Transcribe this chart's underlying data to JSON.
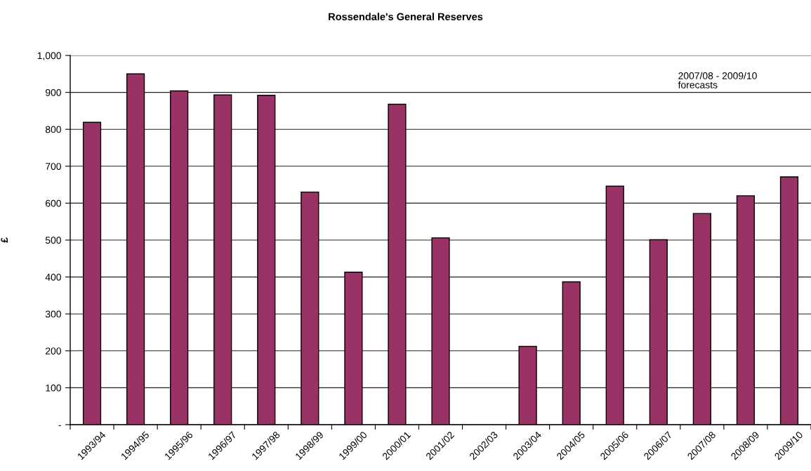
{
  "chart_data": {
    "type": "bar",
    "title": "Rossendale's General Reserves",
    "ylabel": "£",
    "categories": [
      "1993/94",
      "1994/95",
      "1995/96",
      "1996/97",
      "1997/98",
      "1998/99",
      "1999/00",
      "2000/01",
      "2001/02",
      "2002/03",
      "2003/04",
      "2004/05",
      "2005/06",
      "2006/07",
      "2007/08",
      "2008/09",
      "2009/10"
    ],
    "values": [
      819,
      950,
      904,
      893,
      892,
      630,
      413,
      868,
      506,
      null,
      212,
      387,
      646,
      501,
      572,
      620,
      671
    ],
    "color": "#993366",
    "ylim": [
      0,
      1000
    ],
    "yticks": [
      {
        "value": 0,
        "label": "-"
      },
      100,
      200,
      300,
      400,
      500,
      600,
      700,
      800,
      900,
      {
        "value": 1000,
        "label": "1,000"
      }
    ],
    "grid": "y",
    "annotations": [
      "2007/08 - 2009/10\nforecasts"
    ]
  }
}
